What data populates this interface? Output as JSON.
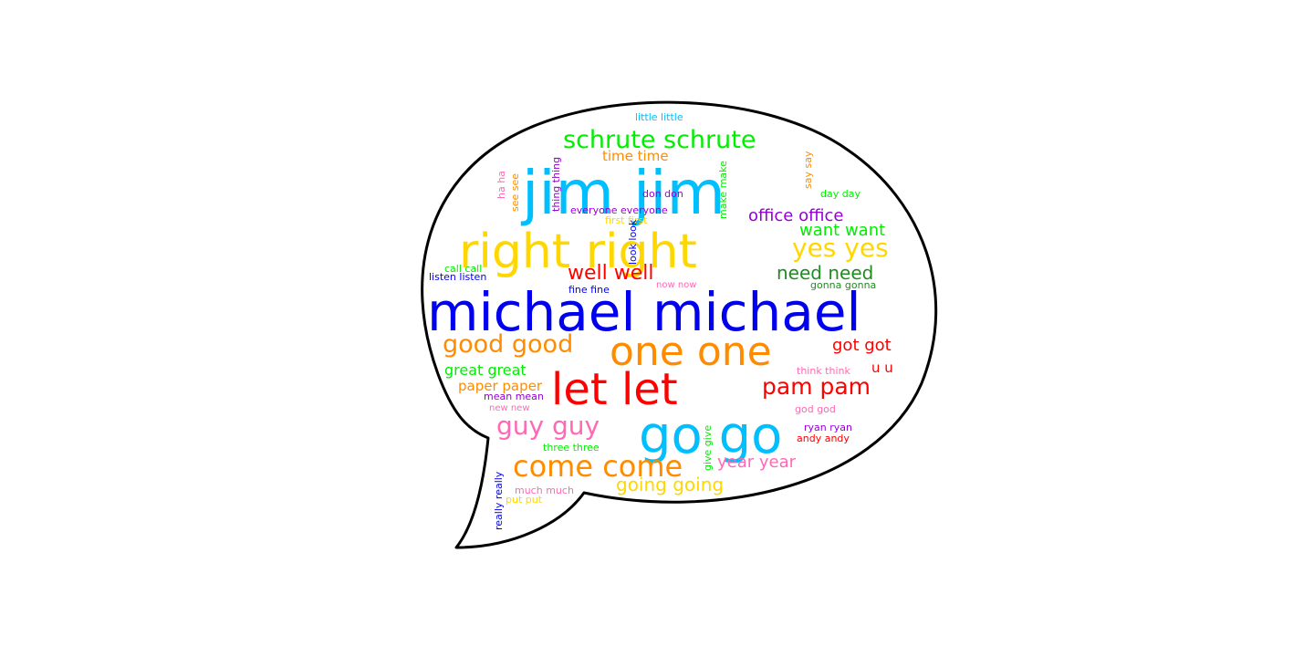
{
  "wordcloud": {
    "shape": "speech-bubble",
    "words": [
      {
        "text": "michael michael",
        "color": "#0000ee"
      },
      {
        "text": "jim jim",
        "color": "#00bfff"
      },
      {
        "text": "right right",
        "color": "#ffd700"
      },
      {
        "text": "one one",
        "color": "#ff8c00"
      },
      {
        "text": "let let",
        "color": "#ff0000"
      },
      {
        "text": "go go",
        "color": "#00bfff"
      },
      {
        "text": "schrute schrute",
        "color": "#00ee00"
      },
      {
        "text": "yes yes",
        "color": "#ffd700"
      },
      {
        "text": "good good",
        "color": "#ff8c00"
      },
      {
        "text": "come come",
        "color": "#ff8c00"
      },
      {
        "text": "guy guy",
        "color": "#ff69b4"
      },
      {
        "text": "pam pam",
        "color": "#ff0000"
      },
      {
        "text": "office office",
        "color": "#9400d3"
      },
      {
        "text": "well well",
        "color": "#ff0000"
      },
      {
        "text": "need need",
        "color": "#228b22"
      },
      {
        "text": "want want",
        "color": "#00ee00"
      },
      {
        "text": "got got",
        "color": "#ff0000"
      },
      {
        "text": "going going",
        "color": "#ffd700"
      },
      {
        "text": "year year",
        "color": "#ff69b4"
      },
      {
        "text": "great great",
        "color": "#00ee00"
      },
      {
        "text": "paper paper",
        "color": "#ff8c00"
      },
      {
        "text": "time time",
        "color": "#ff8c00"
      },
      {
        "text": "u u",
        "color": "#ff0000"
      },
      {
        "text": "little little",
        "color": "#00bfff"
      },
      {
        "text": "everyone everyone",
        "color": "#9400d3"
      },
      {
        "text": "first first",
        "color": "#ffd700"
      },
      {
        "text": "don don",
        "color": "#9400d3"
      },
      {
        "text": "day day",
        "color": "#00ee00"
      },
      {
        "text": "call call",
        "color": "#00ee00"
      },
      {
        "text": "listen listen",
        "color": "#0000ee"
      },
      {
        "text": "fine fine",
        "color": "#0000ee"
      },
      {
        "text": "now now",
        "color": "#ff69b4"
      },
      {
        "text": "gonna gonna",
        "color": "#228b22"
      },
      {
        "text": "think think",
        "color": "#ff69b4"
      },
      {
        "text": "mean mean",
        "color": "#9400d3"
      },
      {
        "text": "new new",
        "color": "#ff69b4"
      },
      {
        "text": "god god",
        "color": "#ff69b4"
      },
      {
        "text": "ryan ryan",
        "color": "#9400d3"
      },
      {
        "text": "andy andy",
        "color": "#ff0000"
      },
      {
        "text": "three three",
        "color": "#00ee00"
      },
      {
        "text": "much much",
        "color": "#ff69b4"
      },
      {
        "text": "put put",
        "color": "#ffd700"
      },
      {
        "text": "ha ha",
        "color": "#ff69b4"
      },
      {
        "text": "see see",
        "color": "#ff8c00"
      },
      {
        "text": "thing thing",
        "color": "#9400d3"
      },
      {
        "text": "make make",
        "color": "#00ee00"
      },
      {
        "text": "say say",
        "color": "#ff8c00"
      },
      {
        "text": "look look",
        "color": "#0000ee"
      },
      {
        "text": "really really",
        "color": "#0000ee"
      },
      {
        "text": "give give",
        "color": "#00ee00"
      }
    ]
  }
}
